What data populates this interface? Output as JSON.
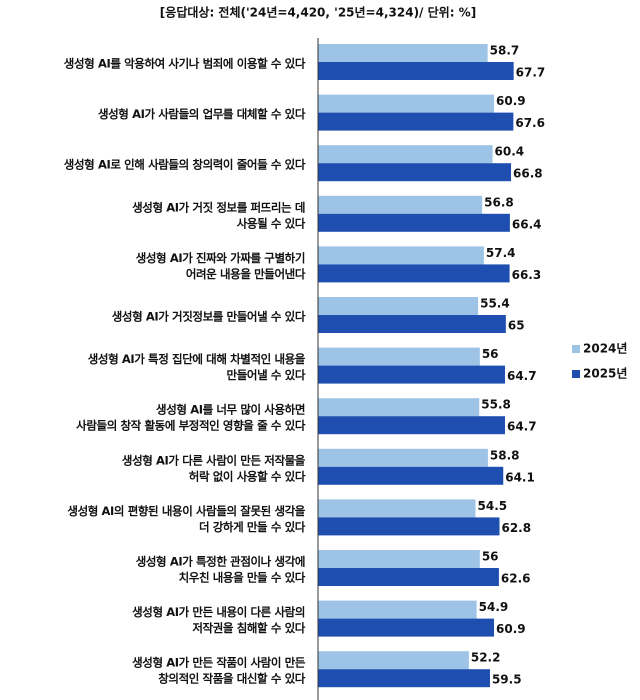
{
  "chart_data": {
    "type": "hbar",
    "subtitle": "[응답대상: 전체('24년=4,420, '25년=4,324)/ 단위: %]",
    "categories": [
      [
        "생성형 AI를 악용하여 사기나 범죄에 이용할 수 있다"
      ],
      [
        "생성형 AI가 사람들의 업무를 대체할 수 있다"
      ],
      [
        "생성형 AI로 인해 사람들의 창의력이 줄어들 수 있다"
      ],
      [
        "생성형 AI가 거짓 정보를 퍼뜨리는 데",
        "사용될 수 있다"
      ],
      [
        "생성형 AI가 진짜와 가짜를 구별하기",
        "어려운 내용을 만들어낸다"
      ],
      [
        "생성형 AI가 거짓정보를 만들어낼 수 있다"
      ],
      [
        "생성형 AI가 특정 집단에 대해 차별적인 내용을",
        "만들어낼 수 있다"
      ],
      [
        "생성형 AI를 너무 많이 사용하면",
        "사람들의 창작 활동에 부정적인 영향을 줄 수 있다"
      ],
      [
        "생성형 AI가 다른 사람이 만든 저작물을",
        "허락 없이 사용할 수 있다"
      ],
      [
        "생성형 AI의 편향된 내용이 사람들의 잘못된 생각을",
        "더 강하게 만들 수 있다"
      ],
      [
        "생성형 AI가 특정한 관점이나 생각에",
        "치우친 내용을 만들 수 있다"
      ],
      [
        "생성형 AI가 만든 내용이 다른 사람의",
        "저작권을 침해할 수 있다"
      ],
      [
        "생성형 AI가 만든 작품이 사람이 만든",
        "창의적인 작품을 대신할 수 있다"
      ]
    ],
    "series": [
      {
        "name": "2024년",
        "color": "#9dc3e6",
        "values": [
          58.7,
          60.9,
          60.4,
          56.8,
          57.4,
          55.4,
          56.0,
          55.8,
          58.8,
          54.5,
          56.0,
          54.9,
          52.2
        ]
      },
      {
        "name": "2025년",
        "color": "#1e4fb0",
        "values": [
          67.7,
          67.6,
          66.8,
          66.4,
          66.3,
          65.0,
          64.7,
          64.7,
          64.1,
          62.8,
          62.6,
          60.9,
          59.5
        ]
      }
    ],
    "xlim": [
      0,
      100
    ],
    "legend": "right"
  }
}
